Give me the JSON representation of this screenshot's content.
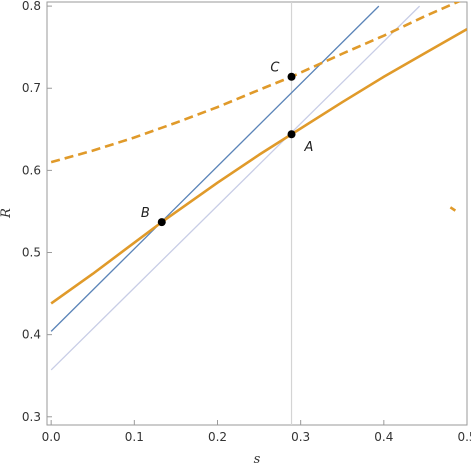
{
  "chart_data": {
    "type": "line",
    "xlabel": "s",
    "ylabel": "R",
    "xlim": [
      -0.005,
      0.5
    ],
    "ylim": [
      0.29,
      0.805
    ],
    "x_ticks": [
      0.0,
      0.1,
      0.2,
      0.3,
      0.4,
      0.5
    ],
    "y_ticks": [
      0.3,
      0.4,
      0.5,
      0.6,
      0.7,
      0.8
    ],
    "x_tick_labels": [
      "0.0",
      "0.1",
      "0.2",
      "0.3",
      "0.4",
      "0.5"
    ],
    "y_tick_labels": [
      "0.3",
      "0.4",
      "0.5",
      "0.6",
      "0.7",
      "0.8"
    ],
    "grid": false,
    "series": [
      {
        "style": "solid-thick",
        "color": "#e09a2a",
        "x": [
          0.0,
          0.05,
          0.1,
          0.133,
          0.2,
          0.25,
          0.289,
          0.35,
          0.4,
          0.45,
          0.5
        ],
        "y": [
          0.438,
          0.474,
          0.512,
          0.537,
          0.585,
          0.619,
          0.644,
          0.683,
          0.714,
          0.743,
          0.772
        ]
      },
      {
        "style": "dashed-thick",
        "color": "#e09a2a",
        "x": [
          0.0,
          0.05,
          0.1,
          0.15,
          0.2,
          0.25,
          0.289,
          0.35,
          0.4,
          0.45,
          0.5
        ],
        "y": [
          0.61,
          0.624,
          0.64,
          0.658,
          0.677,
          0.698,
          0.714,
          0.742,
          0.764,
          0.788,
          0.81
        ]
      },
      {
        "style": "dashed-thick",
        "color": "#e09a2a",
        "x": [
          0.48,
          0.486
        ],
        "y": [
          0.555,
          0.551
        ]
      },
      {
        "style": "solid-thin",
        "color": "#5b84b8",
        "x": [
          0.0,
          0.394
        ],
        "y": [
          0.404,
          0.8
        ]
      },
      {
        "style": "solid-thin",
        "color": "#c8cde6",
        "x": [
          0.0,
          0.443
        ],
        "y": [
          0.357,
          0.8
        ]
      }
    ],
    "vertical_lines": [
      {
        "x": 0.289,
        "color": "#d4d4d4"
      }
    ],
    "points": [
      {
        "label": "A",
        "x": 0.289,
        "y": 0.644,
        "label_position": "below-right"
      },
      {
        "label": "B",
        "x": 0.133,
        "y": 0.537,
        "label_position": "left"
      },
      {
        "label": "C",
        "x": 0.289,
        "y": 0.714,
        "label_position": "left"
      }
    ]
  }
}
